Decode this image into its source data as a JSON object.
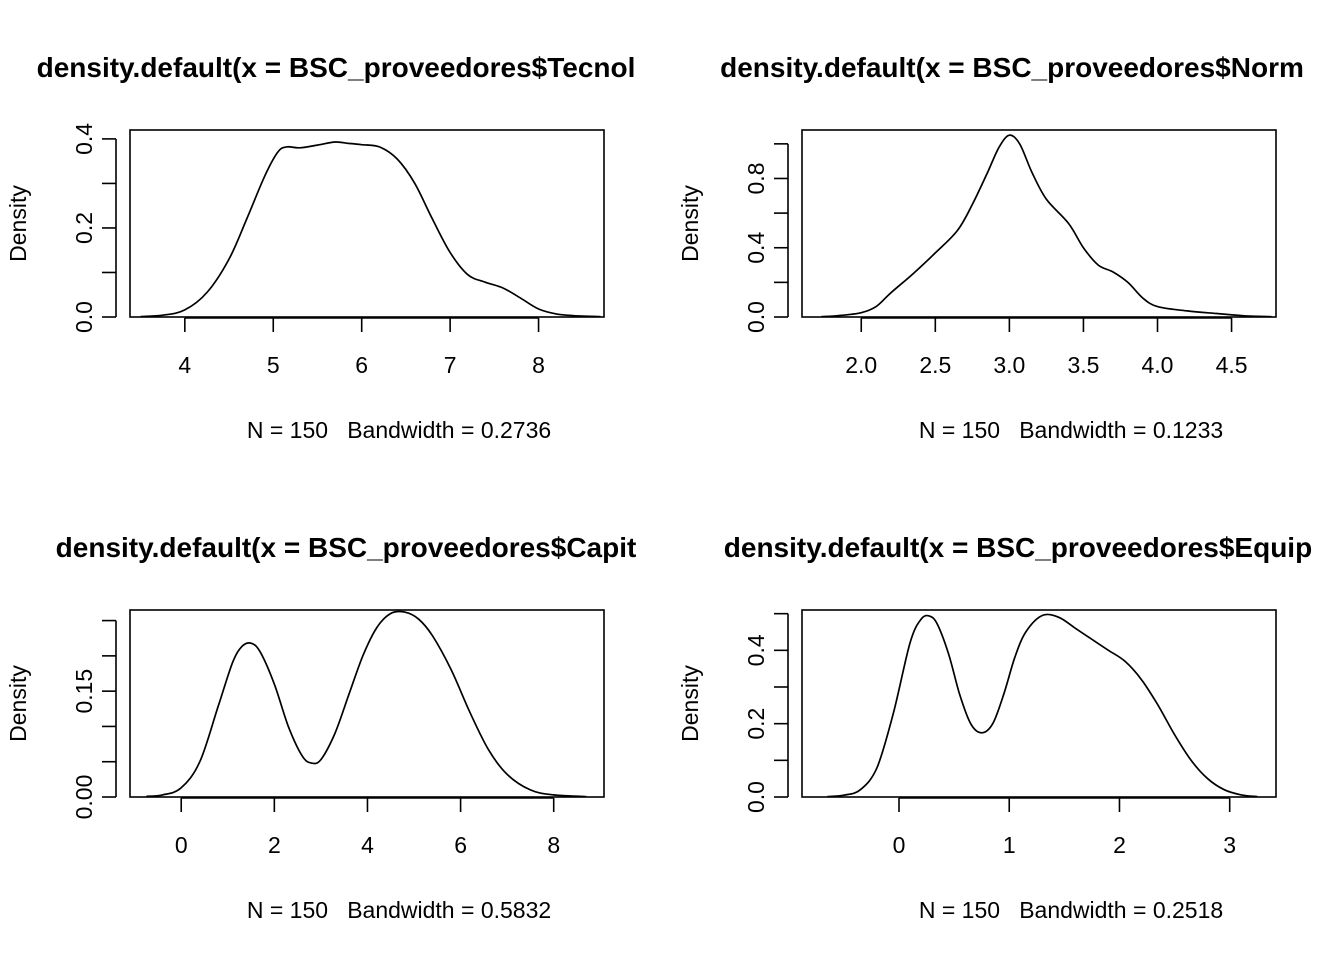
{
  "chart_data": [
    {
      "type": "line",
      "title": "density.default(x = BSC_proveedores$Tecnol",
      "xlabel": "N = 150   Bandwidth = 0.2736",
      "ylabel": "Density",
      "xlim": [
        3.38,
        8.74
      ],
      "ylim": [
        0,
        0.42
      ],
      "xticks": [
        4,
        5,
        6,
        7,
        8
      ],
      "xtick_labels": [
        "4",
        "5",
        "6",
        "7",
        "8"
      ],
      "yticks": [
        0,
        0.1,
        0.2,
        0.3,
        0.4
      ],
      "ytick_labels": [
        "0.0",
        "",
        "0.2",
        "",
        "0.4"
      ],
      "grid": false,
      "series": [
        {
          "x": [
            3.5,
            3.75,
            4.0,
            4.25,
            4.5,
            4.7,
            4.9,
            5.05,
            5.15,
            5.3,
            5.5,
            5.7,
            5.85,
            6.0,
            6.2,
            6.4,
            6.6,
            6.8,
            7.0,
            7.2,
            7.4,
            7.6,
            7.8,
            8.0,
            8.2,
            8.4,
            8.7
          ],
          "y": [
            0.001,
            0.004,
            0.016,
            0.055,
            0.13,
            0.22,
            0.315,
            0.37,
            0.382,
            0.38,
            0.386,
            0.393,
            0.39,
            0.387,
            0.382,
            0.355,
            0.3,
            0.22,
            0.145,
            0.095,
            0.078,
            0.065,
            0.042,
            0.018,
            0.007,
            0.003,
            0.001
          ]
        }
      ]
    },
    {
      "type": "line",
      "title": "density.default(x = BSC_proveedores$Norm",
      "xlabel": "N = 150   Bandwidth = 0.1233",
      "ylabel": "Density",
      "xlim": [
        1.6,
        4.8
      ],
      "ylim": [
        0,
        1.08
      ],
      "xticks": [
        2.0,
        2.5,
        3.0,
        3.5,
        4.0,
        4.5
      ],
      "xtick_labels": [
        "2.0",
        "2.5",
        "3.0",
        "3.5",
        "4.0",
        "4.5"
      ],
      "yticks": [
        0,
        0.2,
        0.4,
        0.6,
        0.8,
        1.0
      ],
      "ytick_labels": [
        "0.0",
        "",
        "0.4",
        "",
        "0.8",
        ""
      ],
      "grid": false,
      "series": [
        {
          "x": [
            1.73,
            1.85,
            2.0,
            2.1,
            2.2,
            2.35,
            2.5,
            2.65,
            2.75,
            2.85,
            2.93,
            3.0,
            3.07,
            3.15,
            3.25,
            3.4,
            3.5,
            3.6,
            3.7,
            3.8,
            3.9,
            4.0,
            4.2,
            4.4,
            4.6,
            4.77
          ],
          "y": [
            0.002,
            0.008,
            0.025,
            0.06,
            0.14,
            0.25,
            0.37,
            0.5,
            0.65,
            0.83,
            0.98,
            1.05,
            1.0,
            0.84,
            0.68,
            0.54,
            0.4,
            0.3,
            0.26,
            0.2,
            0.11,
            0.06,
            0.035,
            0.02,
            0.006,
            0.002
          ]
        }
      ]
    },
    {
      "type": "line",
      "title": "density.default(x = BSC_proveedores$Capit",
      "xlabel": "N = 150   Bandwidth = 0.5832",
      "ylabel": "Density",
      "xlim": [
        -1.1,
        9.08
      ],
      "ylim": [
        0,
        0.265
      ],
      "xticks": [
        0,
        2,
        4,
        6,
        8
      ],
      "xtick_labels": [
        "0",
        "2",
        "4",
        "6",
        "8"
      ],
      "yticks": [
        0,
        0.05,
        0.1,
        0.15,
        0.2,
        0.25
      ],
      "ytick_labels": [
        "0.00",
        "",
        "",
        "0.15",
        "",
        ""
      ],
      "grid": false,
      "series": [
        {
          "x": [
            -0.75,
            -0.4,
            0.0,
            0.4,
            0.8,
            1.1,
            1.3,
            1.5,
            1.7,
            2.0,
            2.3,
            2.6,
            2.8,
            3.0,
            3.3,
            3.6,
            3.9,
            4.2,
            4.5,
            4.8,
            5.1,
            5.4,
            5.8,
            6.2,
            6.6,
            7.0,
            7.5,
            8.0,
            8.7
          ],
          "y": [
            0.001,
            0.003,
            0.013,
            0.05,
            0.13,
            0.19,
            0.213,
            0.218,
            0.205,
            0.16,
            0.1,
            0.058,
            0.048,
            0.053,
            0.09,
            0.145,
            0.2,
            0.24,
            0.26,
            0.262,
            0.252,
            0.228,
            0.18,
            0.12,
            0.067,
            0.032,
            0.01,
            0.003,
            0.0005
          ]
        }
      ]
    },
    {
      "type": "line",
      "title": "density.default(x = BSC_proveedores$Equip",
      "xlabel": "N = 150   Bandwidth = 0.2518",
      "ylabel": "Density",
      "xlim": [
        -0.88,
        3.42
      ],
      "ylim": [
        0,
        0.51
      ],
      "xticks": [
        0,
        1,
        2,
        3
      ],
      "xtick_labels": [
        "0",
        "1",
        "2",
        "3"
      ],
      "yticks": [
        0,
        0.1,
        0.2,
        0.3,
        0.4,
        0.5
      ],
      "ytick_labels": [
        "0.0",
        "",
        "0.2",
        "",
        "0.4",
        ""
      ],
      "grid": false,
      "series": [
        {
          "x": [
            -0.65,
            -0.5,
            -0.35,
            -0.2,
            -0.05,
            0.1,
            0.2,
            0.28,
            0.35,
            0.45,
            0.55,
            0.65,
            0.75,
            0.85,
            0.95,
            1.05,
            1.15,
            1.3,
            1.45,
            1.6,
            1.75,
            1.9,
            2.05,
            2.2,
            2.35,
            2.5,
            2.65,
            2.8,
            2.95,
            3.1,
            3.25
          ],
          "y": [
            0.001,
            0.005,
            0.02,
            0.08,
            0.23,
            0.42,
            0.485,
            0.493,
            0.47,
            0.39,
            0.28,
            0.2,
            0.175,
            0.2,
            0.28,
            0.38,
            0.45,
            0.495,
            0.49,
            0.46,
            0.43,
            0.4,
            0.37,
            0.32,
            0.25,
            0.17,
            0.1,
            0.05,
            0.02,
            0.006,
            0.001
          ]
        }
      ]
    }
  ]
}
